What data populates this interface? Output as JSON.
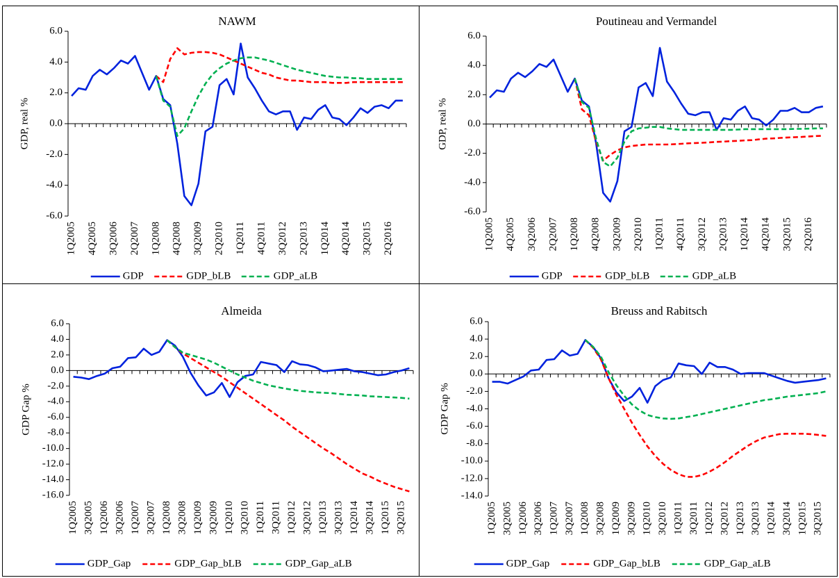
{
  "chart_data": [
    {
      "type": "line",
      "title": "NAWM",
      "y_label": "GDP, real %",
      "legend": "bottom",
      "categories": [
        "1Q2005",
        null,
        null,
        "4Q2005",
        null,
        null,
        "3Q2006",
        null,
        null,
        "2Q2007",
        null,
        null,
        "1Q2008",
        null,
        null,
        "4Q2008",
        null,
        null,
        "3Q2009",
        null,
        null,
        "2Q2010",
        null,
        null,
        "1Q2011",
        null,
        null,
        "4Q2011",
        null,
        null,
        "3Q2012",
        null,
        null,
        "2Q2013",
        null,
        null,
        "1Q2014",
        null,
        null,
        "4Q2014",
        null,
        null,
        "3Q2015",
        null,
        null,
        "2Q2016",
        null,
        null
      ],
      "series": [
        {
          "name": "GDP",
          "color": "#0022dd",
          "dash": "solid",
          "values": [
            1.8,
            2.3,
            2.2,
            3.1,
            3.5,
            3.2,
            3.6,
            4.1,
            3.9,
            4.4,
            3.3,
            2.2,
            3.1,
            1.6,
            1.2,
            -1.3,
            -4.7,
            -5.3,
            -3.9,
            -0.5,
            -0.2,
            2.5,
            2.9,
            1.9,
            5.2,
            3.0,
            2.3,
            1.5,
            0.8,
            0.6,
            0.8,
            0.8,
            -0.4,
            0.4,
            0.3,
            0.9,
            1.2,
            0.4,
            0.3,
            -0.1,
            0.4,
            1.0,
            0.7,
            1.1,
            1.2,
            1.0,
            1.5,
            1.5
          ]
        },
        {
          "name": "GDP_bLB",
          "color": "#ff0000",
          "dash": "dashed",
          "values": [
            null,
            null,
            null,
            null,
            null,
            null,
            null,
            null,
            null,
            null,
            null,
            null,
            3.1,
            2.7,
            4.2,
            4.9,
            4.5,
            4.6,
            4.65,
            4.65,
            4.6,
            4.5,
            4.3,
            4.1,
            3.9,
            3.7,
            3.5,
            3.3,
            3.2,
            3.0,
            2.9,
            2.8,
            2.8,
            2.75,
            2.7,
            2.7,
            2.7,
            2.65,
            2.65,
            2.65,
            2.7,
            2.7,
            2.7,
            2.7,
            2.7,
            2.7,
            2.7,
            2.7
          ]
        },
        {
          "name": "GDP_aLB",
          "color": "#00b050",
          "dash": "dashed",
          "values": [
            null,
            null,
            null,
            null,
            null,
            null,
            null,
            null,
            null,
            null,
            null,
            null,
            3.1,
            1.5,
            1.1,
            -0.8,
            -0.3,
            0.8,
            1.8,
            2.6,
            3.2,
            3.6,
            3.9,
            4.1,
            4.25,
            4.3,
            4.3,
            4.2,
            4.1,
            3.95,
            3.8,
            3.65,
            3.5,
            3.4,
            3.3,
            3.2,
            3.1,
            3.05,
            3.0,
            3.0,
            2.95,
            2.95,
            2.9,
            2.9,
            2.9,
            2.9,
            2.9,
            2.9
          ]
        }
      ],
      "ylim": [
        -6,
        6
      ],
      "yticks": [
        {
          "value": -6,
          "label": "-6.0"
        },
        {
          "value": -4,
          "label": "-4.0"
        },
        {
          "value": -2,
          "label": "-2.0"
        },
        {
          "value": 0,
          "label": "0.0"
        },
        {
          "value": 2,
          "label": "2.0"
        },
        {
          "value": 4,
          "label": "4.0"
        },
        {
          "value": 6,
          "label": "6.0"
        }
      ]
    },
    {
      "type": "line",
      "title": "Poutineau and Vermandel",
      "y_label": "GDP, real %",
      "legend": "bottom",
      "categories": [
        "1Q2005",
        null,
        null,
        "4Q2005",
        null,
        null,
        "3Q2006",
        null,
        null,
        "2Q2007",
        null,
        null,
        "1Q2008",
        null,
        null,
        "4Q2008",
        null,
        null,
        "3Q2009",
        null,
        null,
        "2Q2010",
        null,
        null,
        "1Q2011",
        null,
        null,
        "4Q2011",
        null,
        null,
        "3Q2012",
        null,
        null,
        "2Q2013",
        null,
        null,
        "1Q2014",
        null,
        null,
        "4Q2014",
        null,
        null,
        "3Q2015",
        null,
        null,
        "2Q2016",
        null,
        null
      ],
      "series": [
        {
          "name": "GDP",
          "color": "#0022dd",
          "dash": "solid",
          "values": [
            1.8,
            2.3,
            2.2,
            3.1,
            3.5,
            3.2,
            3.6,
            4.1,
            3.9,
            4.4,
            3.3,
            2.2,
            3.1,
            1.6,
            1.2,
            -1.3,
            -4.7,
            -5.3,
            -3.9,
            -0.5,
            -0.2,
            2.5,
            2.8,
            1.9,
            5.2,
            2.9,
            2.2,
            1.4,
            0.7,
            0.6,
            0.8,
            0.8,
            -0.4,
            0.4,
            0.3,
            0.9,
            1.2,
            0.4,
            0.3,
            -0.1,
            0.3,
            0.9,
            0.9,
            1.1,
            0.8,
            0.8,
            1.1,
            1.2
          ]
        },
        {
          "name": "GDP_bLB",
          "color": "#ff0000",
          "dash": "dashed",
          "values": [
            null,
            null,
            null,
            null,
            null,
            null,
            null,
            null,
            null,
            null,
            null,
            null,
            3.1,
            1.0,
            0.6,
            -1.2,
            -2.5,
            -2.1,
            -1.8,
            -1.6,
            -1.5,
            -1.45,
            -1.4,
            -1.4,
            -1.4,
            -1.4,
            -1.38,
            -1.35,
            -1.32,
            -1.3,
            -1.28,
            -1.25,
            -1.22,
            -1.2,
            -1.17,
            -1.15,
            -1.12,
            -1.1,
            -1.05,
            -1.0,
            -0.98,
            -0.95,
            -0.92,
            -0.9,
            -0.88,
            -0.85,
            -0.82,
            -0.8
          ]
        },
        {
          "name": "GDP_aLB",
          "color": "#00b050",
          "dash": "dashed",
          "values": [
            null,
            null,
            null,
            null,
            null,
            null,
            null,
            null,
            null,
            null,
            null,
            null,
            3.1,
            1.5,
            1.1,
            -1.0,
            -2.6,
            -2.9,
            -2.3,
            -1.2,
            -0.5,
            -0.3,
            -0.25,
            -0.2,
            -0.2,
            -0.3,
            -0.35,
            -0.4,
            -0.4,
            -0.4,
            -0.4,
            -0.4,
            -0.4,
            -0.4,
            -0.4,
            -0.38,
            -0.35,
            -0.35,
            -0.35,
            -0.35,
            -0.35,
            -0.35,
            -0.35,
            -0.33,
            -0.33,
            -0.32,
            -0.3,
            -0.3
          ]
        }
      ],
      "ylim": [
        -6,
        6
      ],
      "yticks": [
        {
          "value": -6,
          "label": "-6.0"
        },
        {
          "value": -4,
          "label": "-4.0"
        },
        {
          "value": -2,
          "label": "-2.0"
        },
        {
          "value": 0,
          "label": "0.0"
        },
        {
          "value": 2,
          "label": "2.0"
        },
        {
          "value": 4,
          "label": "4.0"
        },
        {
          "value": 6,
          "label": "6.0"
        }
      ]
    },
    {
      "type": "line",
      "title": "Almeida",
      "y_label": "GDP Gap %",
      "legend": "bottom",
      "categories": [
        "1Q2005",
        null,
        "3Q2005",
        null,
        "1Q2006",
        null,
        "3Q2006",
        null,
        "1Q2007",
        null,
        "3Q2007",
        null,
        "1Q2008",
        null,
        "3Q2008",
        null,
        "1Q2009",
        null,
        "3Q2009",
        null,
        "1Q2010",
        null,
        "3Q2010",
        null,
        "1Q2011",
        null,
        "3Q2011",
        null,
        "1Q2012",
        null,
        "3Q2012",
        null,
        "1Q2013",
        null,
        "3Q2013",
        null,
        "1Q2014",
        null,
        "3Q2014",
        null,
        "1Q2015",
        null,
        "3Q2015",
        null
      ],
      "series": [
        {
          "name": "GDP_Gap",
          "color": "#0022dd",
          "dash": "solid",
          "values": [
            -0.8,
            -0.9,
            -1.1,
            -0.7,
            -0.4,
            0.3,
            0.5,
            1.6,
            1.7,
            2.8,
            2.0,
            2.4,
            3.9,
            3.2,
            1.8,
            -0.3,
            -1.9,
            -3.2,
            -2.8,
            -1.6,
            -3.4,
            -1.5,
            -0.7,
            -0.5,
            1.1,
            0.9,
            0.7,
            -0.2,
            1.2,
            0.8,
            0.7,
            0.4,
            -0.1,
            0.0,
            0.1,
            0.2,
            -0.1,
            -0.2,
            -0.4,
            -0.6,
            -0.5,
            -0.2,
            0.0,
            0.3
          ]
        },
        {
          "name": "GDP_Gap_bLB",
          "color": "#ff0000",
          "dash": "dashed",
          "values": [
            null,
            null,
            null,
            null,
            null,
            null,
            null,
            null,
            null,
            null,
            null,
            null,
            3.9,
            3.0,
            2.2,
            1.6,
            1.0,
            0.4,
            -0.2,
            -0.8,
            -1.5,
            -2.2,
            -2.9,
            -3.6,
            -4.3,
            -5.0,
            -5.7,
            -6.4,
            -7.2,
            -7.9,
            -8.6,
            -9.3,
            -10.0,
            -10.6,
            -11.3,
            -12.0,
            -12.6,
            -13.2,
            -13.6,
            -14.1,
            -14.5,
            -14.9,
            -15.2,
            -15.5
          ]
        },
        {
          "name": "GDP_Gap_aLB",
          "color": "#00b050",
          "dash": "dashed",
          "values": [
            null,
            null,
            null,
            null,
            null,
            null,
            null,
            null,
            null,
            null,
            null,
            null,
            3.9,
            3.0,
            2.3,
            2.0,
            1.7,
            1.4,
            1.0,
            0.5,
            0.0,
            -0.5,
            -0.9,
            -1.3,
            -1.6,
            -1.9,
            -2.1,
            -2.3,
            -2.45,
            -2.6,
            -2.7,
            -2.8,
            -2.85,
            -2.9,
            -3.0,
            -3.1,
            -3.15,
            -3.2,
            -3.3,
            -3.35,
            -3.4,
            -3.45,
            -3.5,
            -3.6
          ]
        }
      ],
      "ylim": [
        -16,
        6
      ],
      "yticks": [
        {
          "value": -16,
          "label": "-16.0"
        },
        {
          "value": -14,
          "label": "-14.0"
        },
        {
          "value": -12,
          "label": "-12.0"
        },
        {
          "value": -10,
          "label": "-10.0"
        },
        {
          "value": -8,
          "label": "-8.0"
        },
        {
          "value": -6,
          "label": "-6.0"
        },
        {
          "value": -4,
          "label": "-4.0"
        },
        {
          "value": -2,
          "label": "-2.0"
        },
        {
          "value": 0,
          "label": "0.0"
        },
        {
          "value": 2,
          "label": "2.0"
        },
        {
          "value": 4,
          "label": "4.0"
        },
        {
          "value": 6,
          "label": "6.0"
        }
      ]
    },
    {
      "type": "line",
      "title": "Breuss and Rabitsch",
      "y_label": "GDP Gap %",
      "legend": "bottom",
      "categories": [
        "1Q2005",
        null,
        "3Q2005",
        null,
        "1Q2006",
        null,
        "3Q2006",
        null,
        "1Q2007",
        null,
        "3Q2007",
        null,
        "1Q2008",
        null,
        "3Q2008",
        null,
        "1Q2009",
        null,
        "3Q2009",
        null,
        "1Q2010",
        null,
        "3Q2010",
        null,
        "1Q2011",
        null,
        "3Q2011",
        null,
        "1Q2012",
        null,
        "3Q2012",
        null,
        "1Q2013",
        null,
        "3Q2013",
        null,
        "1Q2014",
        null,
        "3Q2014",
        null,
        "1Q2015",
        null,
        "3Q2015",
        null
      ],
      "series": [
        {
          "name": "GDP_Gap",
          "color": "#0022dd",
          "dash": "solid",
          "values": [
            -0.9,
            -0.9,
            -1.1,
            -0.7,
            -0.3,
            0.4,
            0.5,
            1.6,
            1.7,
            2.7,
            2.1,
            2.3,
            3.9,
            3.1,
            1.8,
            -0.5,
            -2.1,
            -3.1,
            -2.6,
            -1.6,
            -3.3,
            -1.4,
            -0.7,
            -0.4,
            1.2,
            1.0,
            0.9,
            0.0,
            1.3,
            0.8,
            0.8,
            0.5,
            0.0,
            0.1,
            0.1,
            0.1,
            -0.2,
            -0.5,
            -0.8,
            -1.0,
            -0.9,
            -0.8,
            -0.7,
            -0.5
          ]
        },
        {
          "name": "GDP_Gap_bLB",
          "color": "#ff0000",
          "dash": "dashed",
          "values": [
            null,
            null,
            null,
            null,
            null,
            null,
            null,
            null,
            null,
            null,
            null,
            null,
            3.9,
            3.0,
            1.7,
            -0.5,
            -2.4,
            -4.0,
            -5.6,
            -7.0,
            -8.3,
            -9.4,
            -10.3,
            -11.0,
            -11.5,
            -11.8,
            -11.8,
            -11.6,
            -11.2,
            -10.7,
            -10.1,
            -9.4,
            -8.8,
            -8.2,
            -7.7,
            -7.3,
            -7.1,
            -6.9,
            -6.85,
            -6.85,
            -6.85,
            -6.9,
            -7.0,
            -7.1
          ]
        },
        {
          "name": "GDP_Gap_aLB",
          "color": "#00b050",
          "dash": "dashed",
          "values": [
            null,
            null,
            null,
            null,
            null,
            null,
            null,
            null,
            null,
            null,
            null,
            null,
            3.9,
            3.1,
            2.0,
            0.2,
            -1.3,
            -2.5,
            -3.5,
            -4.2,
            -4.7,
            -4.95,
            -5.1,
            -5.15,
            -5.1,
            -4.95,
            -4.8,
            -4.6,
            -4.4,
            -4.2,
            -4.0,
            -3.8,
            -3.6,
            -3.4,
            -3.2,
            -3.0,
            -2.9,
            -2.75,
            -2.6,
            -2.5,
            -2.4,
            -2.3,
            -2.2,
            -2.0
          ]
        }
      ],
      "ylim": [
        -14,
        6
      ],
      "yticks": [
        {
          "value": -14,
          "label": "-14.0"
        },
        {
          "value": -12,
          "label": "-12.0"
        },
        {
          "value": -10,
          "label": "-10.0"
        },
        {
          "value": -8,
          "label": "-8.0"
        },
        {
          "value": -6,
          "label": "-6.0"
        },
        {
          "value": -4,
          "label": "-4.0"
        },
        {
          "value": -2,
          "label": "-2.0"
        },
        {
          "value": 0,
          "label": "0.0"
        },
        {
          "value": 2,
          "label": "2.0"
        },
        {
          "value": 4,
          "label": "4.0"
        },
        {
          "value": 6,
          "label": "6.0"
        }
      ]
    }
  ]
}
